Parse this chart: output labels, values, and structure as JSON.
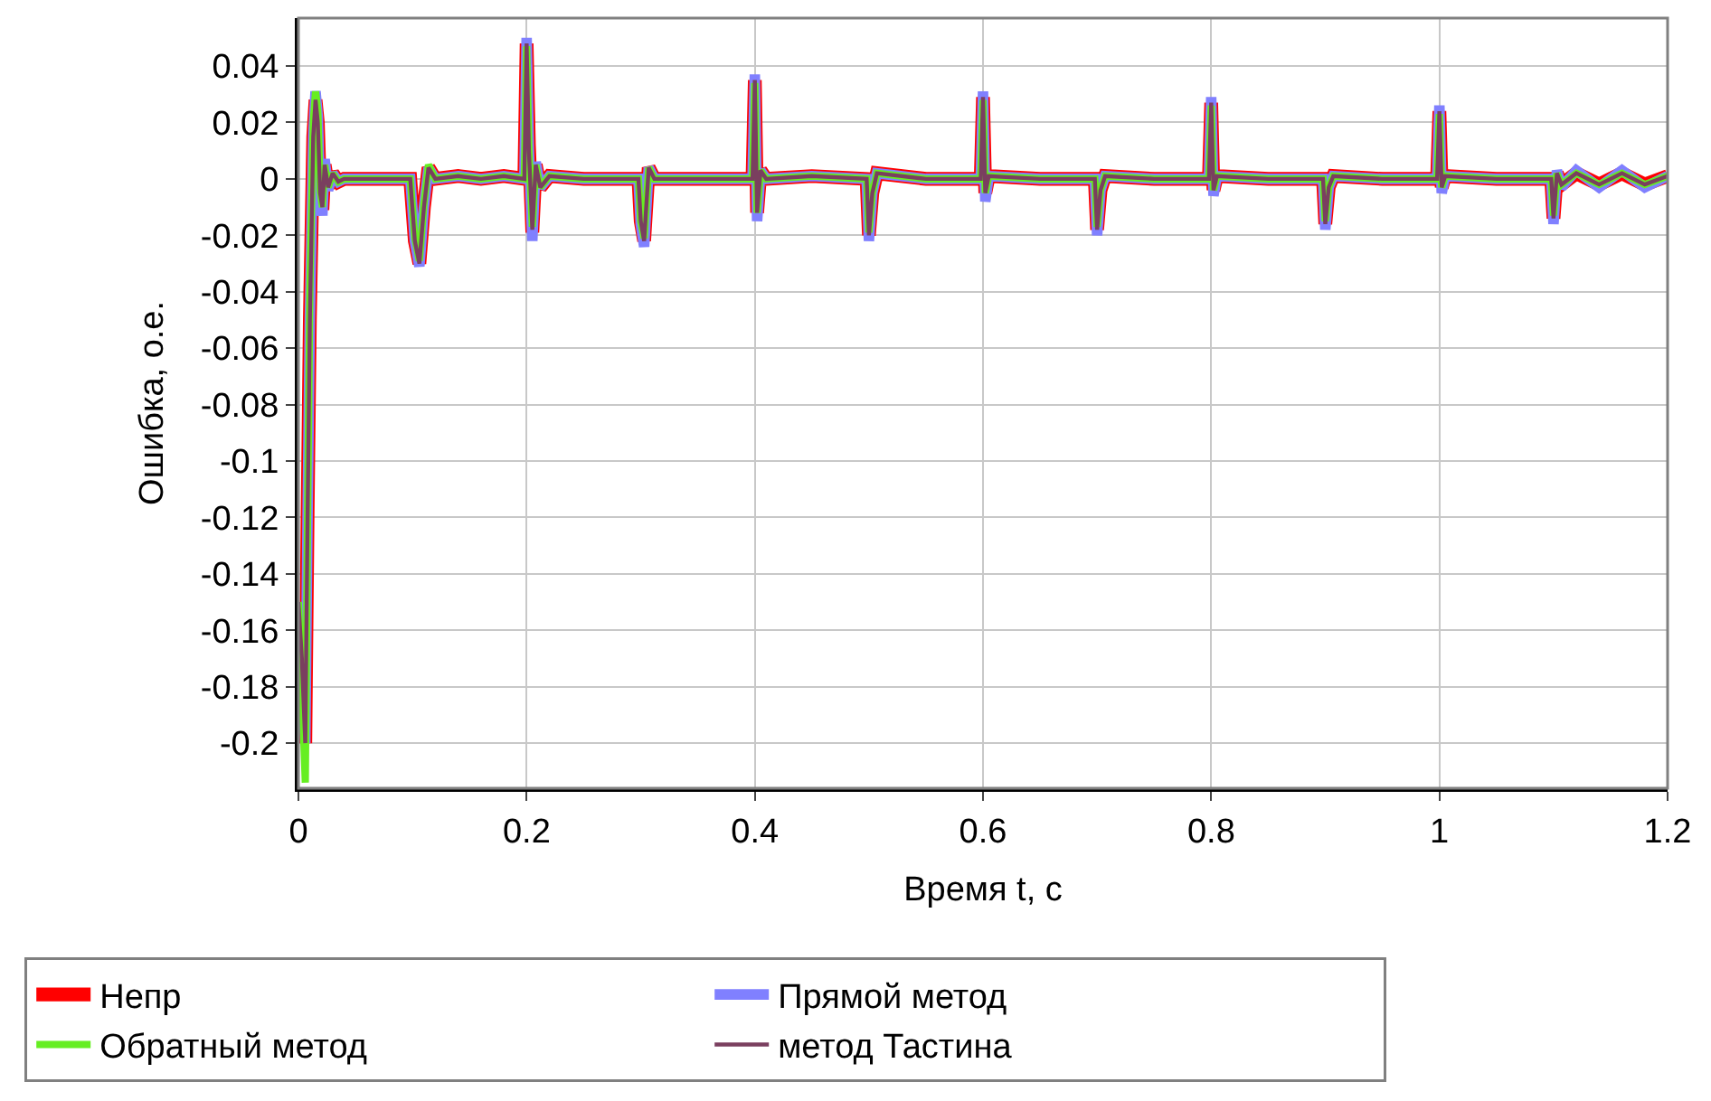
{
  "chart_data": {
    "type": "line",
    "xlabel": "Время t, с",
    "ylabel": "Ошибка, о.е.",
    "x": [
      0,
      0.003,
      0.006,
      0.008,
      0.01,
      0.013,
      0.015,
      0.017,
      0.019,
      0.021,
      0.023,
      0.026,
      0.03,
      0.035,
      0.04,
      0.06,
      0.08,
      0.098,
      0.102,
      0.106,
      0.11,
      0.114,
      0.12,
      0.14,
      0.16,
      0.18,
      0.198,
      0.2,
      0.202,
      0.205,
      0.208,
      0.212,
      0.22,
      0.25,
      0.298,
      0.3,
      0.303,
      0.307,
      0.312,
      0.35,
      0.398,
      0.4,
      0.402,
      0.405,
      0.41,
      0.45,
      0.498,
      0.5,
      0.503,
      0.507,
      0.55,
      0.598,
      0.6,
      0.602,
      0.605,
      0.65,
      0.698,
      0.7,
      0.703,
      0.707,
      0.75,
      0.798,
      0.8,
      0.802,
      0.805,
      0.85,
      0.898,
      0.9,
      0.903,
      0.907,
      0.95,
      0.998,
      1.0,
      1.002,
      1.005,
      1.05,
      1.098,
      1.1,
      1.103,
      1.107,
      1.12,
      1.14,
      1.16,
      1.18,
      1.2
    ],
    "series": [
      {
        "name": "Непр",
        "color": "#ff0000",
        "values": [
          -0.15,
          -0.17,
          -0.2,
          -0.12,
          -0.05,
          0.015,
          0.028,
          0.02,
          -0.005,
          -0.011,
          0.005,
          -0.003,
          0.002,
          -0.001,
          0,
          0,
          0,
          0,
          -0.022,
          -0.03,
          -0.01,
          0.004,
          0,
          0.001,
          0,
          0.001,
          0,
          0.048,
          0.012,
          -0.019,
          0.005,
          -0.003,
          0.001,
          0,
          0,
          -0.015,
          -0.022,
          0.004,
          0,
          0,
          0,
          0.035,
          -0.012,
          0.003,
          0,
          0.001,
          0,
          -0.02,
          -0.005,
          0.002,
          0,
          0,
          0.029,
          -0.005,
          0.001,
          0,
          0,
          -0.018,
          -0.004,
          0.001,
          0,
          0,
          0.027,
          -0.004,
          0.001,
          0,
          0,
          -0.016,
          -0.003,
          0.001,
          0,
          0,
          0.024,
          -0.003,
          0.001,
          0,
          0,
          -0.014,
          0.002,
          -0.002,
          0.002,
          -0.002,
          0.002,
          -0.002,
          0.001
        ]
      },
      {
        "name": "Прямой метод",
        "color": "#8080ff",
        "values": [
          -0.15,
          -0.17,
          -0.2,
          -0.12,
          -0.05,
          0.016,
          0.031,
          0.022,
          -0.006,
          -0.013,
          0.007,
          -0.004,
          0.002,
          -0.001,
          0,
          0,
          0,
          0,
          -0.022,
          -0.031,
          -0.01,
          0.004,
          0,
          0.001,
          0,
          0.001,
          0,
          0.05,
          0.01,
          -0.022,
          0.006,
          -0.003,
          0.001,
          0,
          0,
          -0.016,
          -0.024,
          0.004,
          0,
          0,
          0,
          0.037,
          -0.015,
          0.003,
          0,
          0.001,
          0,
          -0.022,
          -0.005,
          0.002,
          0,
          0,
          0.031,
          -0.008,
          0.001,
          0,
          0,
          -0.02,
          -0.004,
          0.001,
          0,
          0,
          0.029,
          -0.006,
          0.001,
          0,
          0,
          -0.018,
          -0.003,
          0.001,
          0,
          0,
          0.026,
          -0.005,
          0.001,
          0,
          0,
          -0.016,
          0.003,
          -0.003,
          0.003,
          -0.003,
          0.003,
          -0.003,
          0.001
        ]
      },
      {
        "name": "Обратный метод",
        "color": "#66ee22",
        "values": [
          -0.15,
          -0.18,
          -0.214,
          -0.12,
          -0.04,
          0.02,
          0.031,
          0.024,
          -0.004,
          -0.01,
          0.005,
          -0.003,
          0.002,
          -0.001,
          0,
          0,
          0,
          0,
          -0.021,
          -0.029,
          -0.009,
          0.005,
          0,
          0.001,
          0,
          0.001,
          0,
          0.047,
          0.01,
          -0.017,
          0.005,
          -0.003,
          0.001,
          0,
          0,
          -0.015,
          -0.021,
          0.004,
          0,
          0,
          0,
          0.034,
          -0.012,
          0.003,
          0,
          0.001,
          0,
          -0.019,
          -0.005,
          0.002,
          0,
          0,
          0.028,
          -0.005,
          0.001,
          0,
          0,
          -0.017,
          -0.004,
          0.001,
          0,
          0,
          0.026,
          -0.004,
          0.001,
          0,
          0,
          -0.015,
          -0.003,
          0.001,
          0,
          0,
          0.023,
          -0.003,
          0.001,
          0,
          0,
          -0.013,
          0.002,
          -0.002,
          0.002,
          -0.002,
          0.002,
          -0.002,
          0.001
        ]
      },
      {
        "name": "метод Тастина",
        "color": "#7a3f5f",
        "values": [
          -0.15,
          -0.17,
          -0.2,
          -0.12,
          -0.05,
          0.015,
          0.028,
          0.02,
          -0.005,
          -0.01,
          0.005,
          -0.003,
          0.002,
          -0.001,
          0,
          0,
          0,
          0,
          -0.022,
          -0.03,
          -0.01,
          0.004,
          0,
          0.001,
          0,
          0.001,
          0,
          0.048,
          0.01,
          -0.018,
          0.005,
          -0.003,
          0.001,
          0,
          0,
          -0.015,
          -0.022,
          0.004,
          0,
          0,
          0,
          0.035,
          -0.012,
          0.003,
          0,
          0.001,
          0,
          -0.02,
          -0.005,
          0.002,
          0,
          0,
          0.029,
          -0.005,
          0.001,
          0,
          0,
          -0.018,
          -0.004,
          0.001,
          0,
          0,
          0.027,
          -0.004,
          0.001,
          0,
          0,
          -0.016,
          -0.003,
          0.001,
          0,
          0,
          0.024,
          -0.003,
          0.001,
          0,
          0,
          -0.014,
          0.002,
          -0.002,
          0.002,
          -0.002,
          0.002,
          -0.002,
          0.001
        ]
      }
    ],
    "xlim": [
      0,
      1.2
    ],
    "xticks": [
      0,
      0.2,
      0.4,
      0.6,
      0.8,
      1,
      1.2
    ],
    "ylim": [
      -0.216,
      0.057
    ],
    "yticks": [
      0.04,
      0.02,
      0,
      -0.02,
      -0.04,
      -0.06,
      -0.08,
      -0.1,
      -0.12,
      -0.14,
      -0.16,
      -0.18,
      -0.2
    ],
    "grid": true,
    "legend": "bottom",
    "marker": "none",
    "line_style": "solid"
  }
}
